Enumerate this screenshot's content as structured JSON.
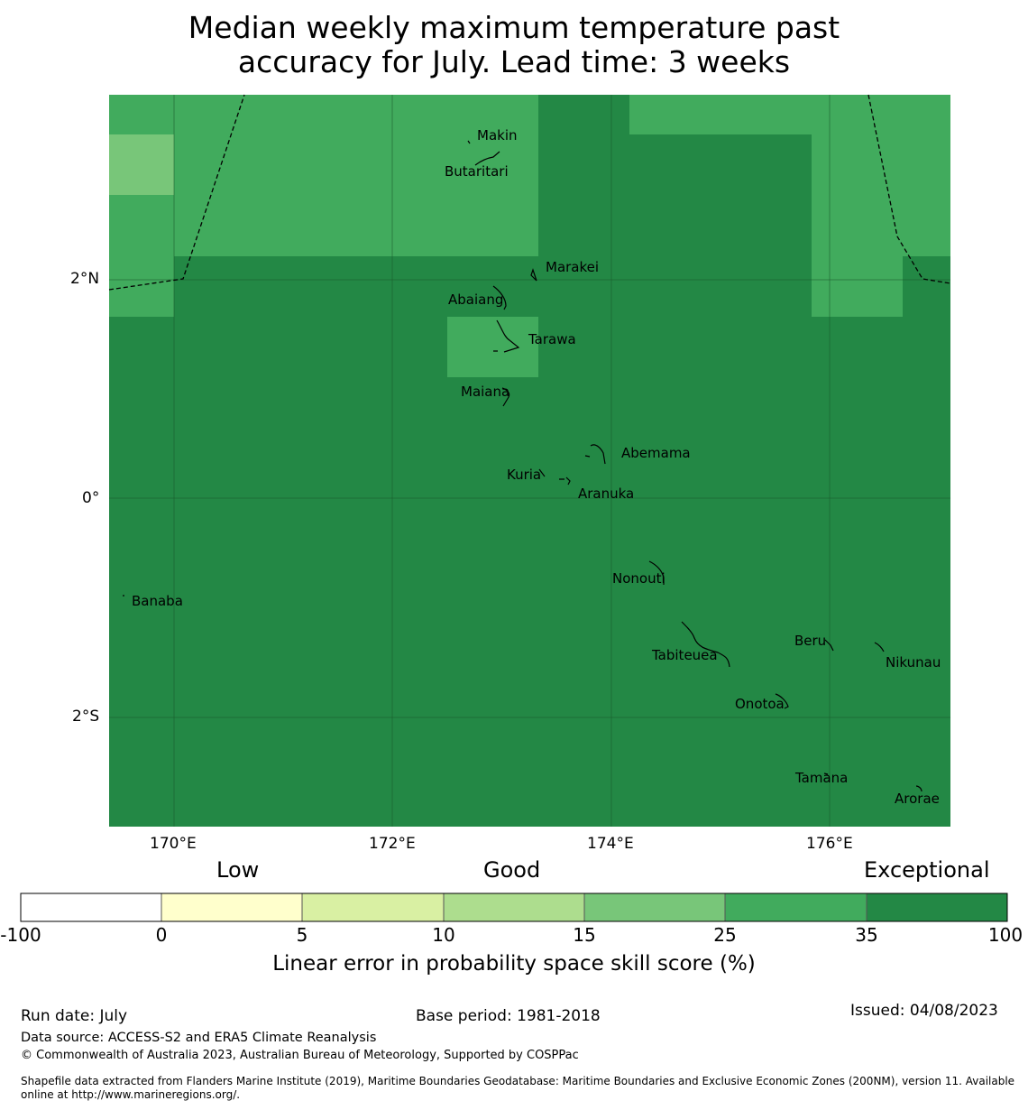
{
  "title": {
    "line1": "Median weekly maximum temperature past",
    "line2": "accuracy for July. Lead time: 3 weeks"
  },
  "map": {
    "lon_range": [
      169.4,
      177.1
    ],
    "lat_range": [
      -2.99,
      3.7
    ],
    "x_ticks": [
      "170°E",
      "172°E",
      "174°E",
      "176°E"
    ],
    "y_ticks": [
      "2°N",
      "0°",
      "2°S"
    ],
    "skill_colors": {
      "35-100": "#238845",
      "25-35": "#41ab5d",
      "15-25": "#78c679"
    },
    "islands": [
      {
        "name": "Makin",
        "lon": 173.0,
        "lat": 3.35
      },
      {
        "name": "Butaritari",
        "lon": 172.85,
        "lat": 3.05
      },
      {
        "name": "Marakei",
        "lon": 173.3,
        "lat": 2.0
      },
      {
        "name": "Abaiang",
        "lon": 173.0,
        "lat": 1.8
      },
      {
        "name": "Tarawa",
        "lon": 173.0,
        "lat": 1.4
      },
      {
        "name": "Maiana",
        "lon": 173.0,
        "lat": 0.92
      },
      {
        "name": "Abemama",
        "lon": 173.9,
        "lat": 0.4
      },
      {
        "name": "Kuria",
        "lon": 173.4,
        "lat": 0.22
      },
      {
        "name": "Aranuka",
        "lon": 173.6,
        "lat": 0.17
      },
      {
        "name": "Nonouti",
        "lon": 174.4,
        "lat": -0.65
      },
      {
        "name": "Banaba",
        "lon": 169.53,
        "lat": -0.87
      },
      {
        "name": "Tabiteuea",
        "lon": 174.9,
        "lat": -1.35
      },
      {
        "name": "Beru",
        "lon": 176.0,
        "lat": -1.33
      },
      {
        "name": "Nikunau",
        "lon": 176.45,
        "lat": -1.37
      },
      {
        "name": "Onotoa",
        "lon": 175.55,
        "lat": -1.85
      },
      {
        "name": "Tamana",
        "lon": 175.98,
        "lat": -2.5
      },
      {
        "name": "Arorae",
        "lon": 176.82,
        "lat": -2.65
      }
    ]
  },
  "colorbar": {
    "category_labels": [
      "Low",
      "Good",
      "Exceptional"
    ],
    "boundaries": [
      "-100",
      "0",
      "5",
      "10",
      "15",
      "25",
      "35",
      "100"
    ],
    "colors": [
      "#ffffff",
      "#ffffcc",
      "#d9f0a3",
      "#addd8e",
      "#78c679",
      "#41ab5d",
      "#238845"
    ],
    "label": "Linear error in probability space skill score (%)"
  },
  "footer": {
    "run_date": "Run date: July",
    "base_period": "Base period: 1981-2018",
    "issued": "Issued: 04/08/2023",
    "data_source": "Data source: ACCESS-S2 and ERA5 Climate Reanalysis",
    "copyright": "© Commonwealth of Australia 2023, Australian Bureau of Meteorology, Supported by COSPPac",
    "shapefile_line1": "Shapefile data extracted from Flanders Marine Institute (2019), Maritime Boundaries Geodatabase: Maritime Boundaries and Exclusive Economic Zones (200NM), version 11. Available",
    "shapefile_line2": "online at http://www.marineregions.org/."
  }
}
